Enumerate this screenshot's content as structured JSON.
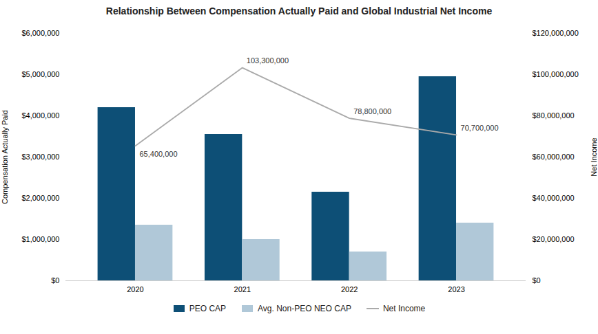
{
  "chart_data": {
    "type": "bar",
    "title": "Relationship Between Compensation Actually Paid and Global Industrial Net Income",
    "categories": [
      "2020",
      "2021",
      "2022",
      "2023"
    ],
    "series": [
      {
        "name": "PEO CAP",
        "type": "bar",
        "color": "#0d4f76",
        "values": [
          4200000,
          3550000,
          2150000,
          4950000
        ]
      },
      {
        "name": "Avg. Non-PEO NEO CAP",
        "type": "bar",
        "color": "#b0c8d8",
        "values": [
          1350000,
          1000000,
          700000,
          1400000
        ]
      },
      {
        "name": "Net Income",
        "type": "line",
        "axis": "y2",
        "color": "#aaaaaa",
        "data_labels": true,
        "values": [
          65400000,
          103300000,
          78800000,
          70700000
        ],
        "value_labels": [
          "65,400,000",
          "103,300,000",
          "78,800,000",
          "70,700,000"
        ]
      }
    ],
    "ylabel": "Compensation Actually Paid",
    "y2label": "Net Income",
    "ylim": [
      0,
      6000000
    ],
    "yticks": [
      {
        "value": 0,
        "label": "$0"
      },
      {
        "value": 1000000,
        "label": "$1,000,000"
      },
      {
        "value": 2000000,
        "label": "$2,000,000"
      },
      {
        "value": 3000000,
        "label": "$3,000,000"
      },
      {
        "value": 4000000,
        "label": "$4,000,000"
      },
      {
        "value": 5000000,
        "label": "$5,000,000"
      },
      {
        "value": 6000000,
        "label": "$6,000,000"
      }
    ],
    "y2lim": [
      0,
      120000000
    ],
    "y2ticks": [
      {
        "value": 0,
        "label": "$0"
      },
      {
        "value": 20000000,
        "label": "$20,000,000"
      },
      {
        "value": 40000000,
        "label": "$40,000,000"
      },
      {
        "value": 60000000,
        "label": "$60,000,000"
      },
      {
        "value": 80000000,
        "label": "$80,000,000"
      },
      {
        "value": 100000000,
        "label": "$100,000,000"
      },
      {
        "value": 120000000,
        "label": "$120,000,000"
      }
    ],
    "legend": "bottom",
    "grid": false
  }
}
